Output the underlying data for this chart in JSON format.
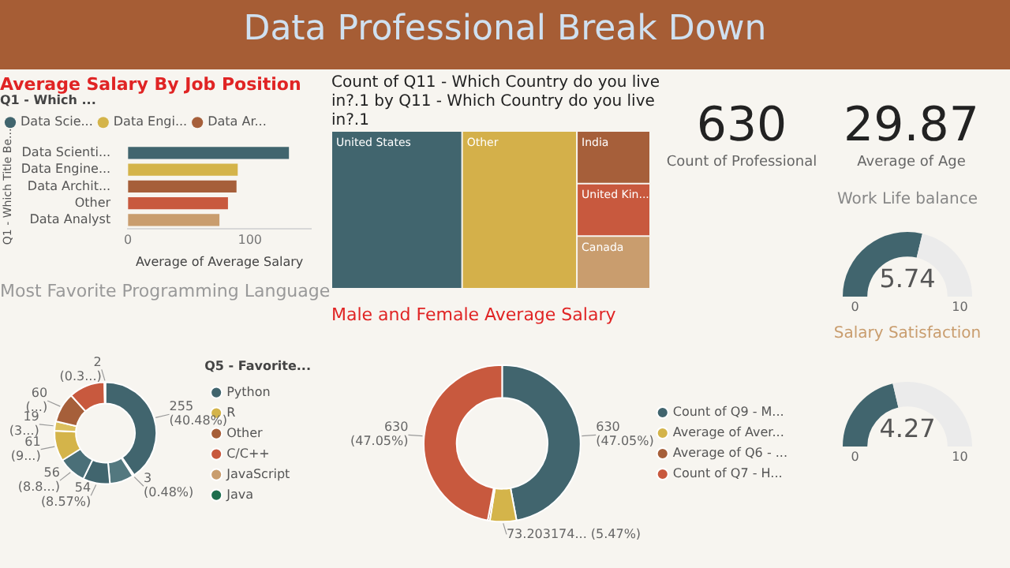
{
  "chart_data": [
    {
      "type": "other",
      "title": "Data Professional Break Down"
    },
    {
      "type": "bar",
      "orientation": "horizontal",
      "title": "Average Salary By Job Position",
      "legend_title": "Q1 - Which ...",
      "legend": "top",
      "ylabel": "Q1 - Which Title Be...",
      "xlabel": "Average of Average Salary",
      "categories": [
        "Data Scienti...",
        "Data Engine...",
        "Data Archit...",
        "Other",
        "Data Analyst"
      ],
      "xlim": [
        0,
        150
      ],
      "xticks": [
        0,
        100
      ],
      "series": [
        {
          "name": "Data Scie...",
          "color": "#41656e",
          "values": [
            132,
            null,
            null,
            null,
            null
          ]
        },
        {
          "name": "Data Engi...",
          "color": "#d4b44a",
          "values": [
            null,
            90,
            null,
            null,
            null
          ]
        },
        {
          "name": "Data Ar...",
          "color": "#a65f3a",
          "values": [
            null,
            null,
            89,
            null,
            null
          ]
        },
        {
          "color": "#c8593e",
          "values": [
            null,
            null,
            null,
            82,
            null
          ]
        },
        {
          "color": "#c99d6e",
          "values": [
            null,
            null,
            null,
            null,
            75
          ]
        }
      ]
    },
    {
      "type": "other",
      "title": "Count of Q11 - Which Country do you live in?.1 by Q11 - Which Country do you live in?.1",
      "categories": [
        "United States",
        "Other",
        "India",
        "United Kin...",
        "Canada"
      ],
      "colors": [
        "#41656e",
        "#d4b04a",
        "#a65f3a",
        "#c8593e",
        "#c99d6e"
      ]
    },
    {
      "type": "other",
      "annotations": [
        "630",
        "Count of Professional"
      ]
    },
    {
      "type": "other",
      "annotations": [
        "29.87",
        "Average of Age"
      ]
    },
    {
      "type": "donut",
      "title": "Work Life balance",
      "categories": [
        null,
        null
      ],
      "values": [
        5.74,
        4.26
      ],
      "colors": [
        "#41656e",
        "#ebebeb"
      ],
      "value_labels": [
        "5.74",
        null
      ],
      "annotations": [
        "0",
        "10"
      ]
    },
    {
      "type": "donut",
      "title": "Most Favorite Programming Language",
      "legend": "right",
      "legend_title": "Q5 - Favorite...",
      "categories": [
        "Python",
        null,
        null,
        null,
        null,
        "R",
        null,
        "Other",
        "C/C++",
        "JavaScript",
        "Java"
      ],
      "values": [
        255,
        3,
        48,
        54,
        56,
        61,
        19,
        60,
        72,
        2,
        null
      ],
      "colors": [
        "#41656e",
        "#4a6f78",
        "#53787f",
        "#41656e",
        "#4a6f78",
        "#d4b44a",
        "#dcc05e",
        "#a65f3a",
        "#c8593e",
        "#c99d6e",
        "#1d6e4e"
      ],
      "value_labels": [
        "255 (40.48%)",
        "3 (0.48%)",
        null,
        "54 (8.57%)",
        "56 (8.8...)",
        "61 (9...)",
        "19 (3...)",
        "60 (...)",
        null,
        "2 (0.3...)",
        null
      ]
    },
    {
      "type": "donut",
      "title": "Male and Female Average Salary",
      "legend": "right",
      "categories": [
        "Count of Q9 - M...",
        "Average of Aver...",
        "Average of Q6 - ...",
        "Count of Q7 - H..."
      ],
      "values": [
        630,
        73.203174,
        5.8,
        630
      ],
      "colors": [
        "#41656e",
        "#d4b44a",
        "#a65f3a",
        "#c8593e"
      ],
      "value_labels": [
        "630 (47.05%)",
        "73.203174... (5.47%)",
        null,
        "630 (47.05%)"
      ]
    },
    {
      "type": "donut",
      "title": "Salary Satisfaction",
      "categories": [
        null,
        null
      ],
      "values": [
        4.27,
        5.73
      ],
      "colors": [
        "#41656e",
        "#ebebeb"
      ],
      "value_labels": [
        "4.27",
        null
      ],
      "annotations": [
        "0",
        "10"
      ]
    }
  ]
}
